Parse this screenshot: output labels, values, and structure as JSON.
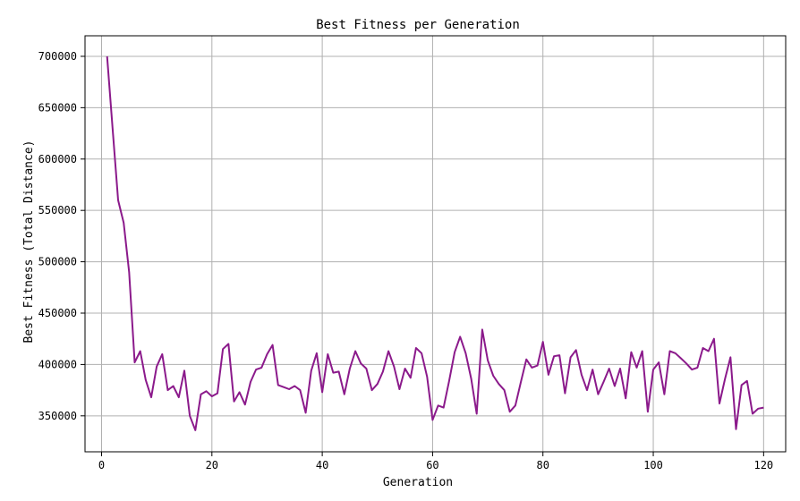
{
  "chart_data": {
    "type": "line",
    "title": "Best Fitness per Generation",
    "xlabel": "Generation",
    "ylabel": "Best Fitness (Total Distance)",
    "xlim": [
      -3,
      124
    ],
    "ylim": [
      315000,
      720000
    ],
    "xticks": [
      0,
      20,
      40,
      60,
      80,
      100,
      120
    ],
    "yticks": [
      350000,
      400000,
      450000,
      500000,
      550000,
      600000,
      650000,
      700000
    ],
    "grid": true,
    "color": "#8b1a8b",
    "series": [
      {
        "x": [
          1,
          2,
          3,
          4,
          5,
          6,
          7,
          8,
          9,
          10,
          11,
          12,
          13,
          14,
          15,
          16,
          17,
          18,
          19,
          20,
          21,
          22,
          23,
          24,
          25,
          26,
          27,
          28,
          29,
          30,
          31,
          32,
          33,
          34,
          35,
          36,
          37,
          38,
          39,
          40,
          41,
          42,
          43,
          44,
          45,
          46,
          47,
          48,
          49,
          50,
          51,
          52,
          53,
          54,
          55,
          56,
          57,
          58,
          59,
          60,
          61,
          62,
          63,
          64,
          65,
          66,
          67,
          68,
          69,
          70,
          71,
          72,
          73,
          74,
          75,
          76,
          77,
          78,
          79,
          80,
          81,
          82,
          83,
          84,
          85,
          86,
          87,
          88,
          89,
          90,
          91,
          92,
          93,
          94,
          95,
          96,
          97,
          98,
          99,
          100,
          101,
          102,
          103,
          104,
          105,
          106,
          107,
          108,
          109,
          110,
          111,
          112,
          113,
          114,
          115,
          116,
          117,
          118,
          119,
          120
        ],
        "values": [
          700000,
          630000,
          560000,
          538000,
          490000,
          402000,
          413000,
          385000,
          368000,
          398000,
          410000,
          375000,
          379000,
          368000,
          394000,
          350000,
          336000,
          371000,
          374000,
          369000,
          372000,
          415000,
          420000,
          364000,
          373000,
          361000,
          383000,
          395000,
          397000,
          410000,
          419000,
          380000,
          378000,
          376000,
          379000,
          375000,
          353000,
          394000,
          411000,
          373000,
          410000,
          392000,
          393000,
          371000,
          396000,
          413000,
          401000,
          396000,
          375000,
          381000,
          393000,
          413000,
          398000,
          376000,
          396000,
          387000,
          416000,
          411000,
          388000,
          346000,
          360000,
          358000,
          384000,
          412000,
          427000,
          411000,
          386000,
          352000,
          434000,
          404000,
          389000,
          381000,
          375000,
          354000,
          360000,
          383000,
          405000,
          397000,
          399000,
          422000,
          390000,
          408000,
          409000,
          372000,
          407000,
          414000,
          390000,
          375000,
          395000,
          371000,
          383000,
          396000,
          379000,
          396000,
          367000,
          412000,
          397000,
          413000,
          354000,
          395000,
          402000,
          371000,
          413000,
          411000,
          406000,
          401000,
          395000,
          397000,
          416000,
          413000,
          425000,
          362000,
          386000,
          407000,
          337000,
          380000,
          384000,
          352000,
          357000,
          358000
        ]
      }
    ]
  }
}
